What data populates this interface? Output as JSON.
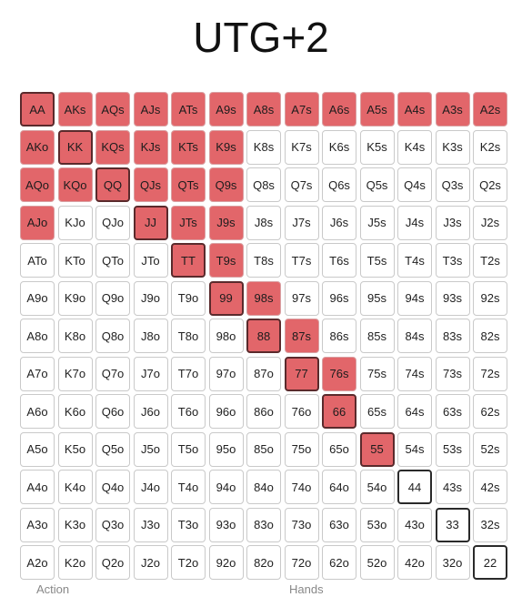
{
  "title": "UTG+2",
  "ranks": [
    "A",
    "K",
    "Q",
    "J",
    "T",
    "9",
    "8",
    "7",
    "6",
    "5",
    "4",
    "3",
    "2"
  ],
  "raise_hands": [
    "AA",
    "AKs",
    "AQs",
    "AJs",
    "ATs",
    "A9s",
    "A8s",
    "A7s",
    "A6s",
    "A5s",
    "A4s",
    "A3s",
    "A2s",
    "AKo",
    "KK",
    "KQs",
    "KJs",
    "KTs",
    "K9s",
    "AQo",
    "KQo",
    "QQ",
    "QJs",
    "QTs",
    "Q9s",
    "AJo",
    "JJ",
    "JTs",
    "J9s",
    "TT",
    "T9s",
    "99",
    "98s",
    "88",
    "87s",
    "77",
    "76s",
    "66",
    "55"
  ],
  "colors": {
    "raise": "#e2666a",
    "fold": "#ffffff",
    "border": "#c9c9c9",
    "pair_border": "#2a2a2a"
  },
  "legend": {
    "action_label": "Action",
    "hands_label": "Hands"
  }
}
